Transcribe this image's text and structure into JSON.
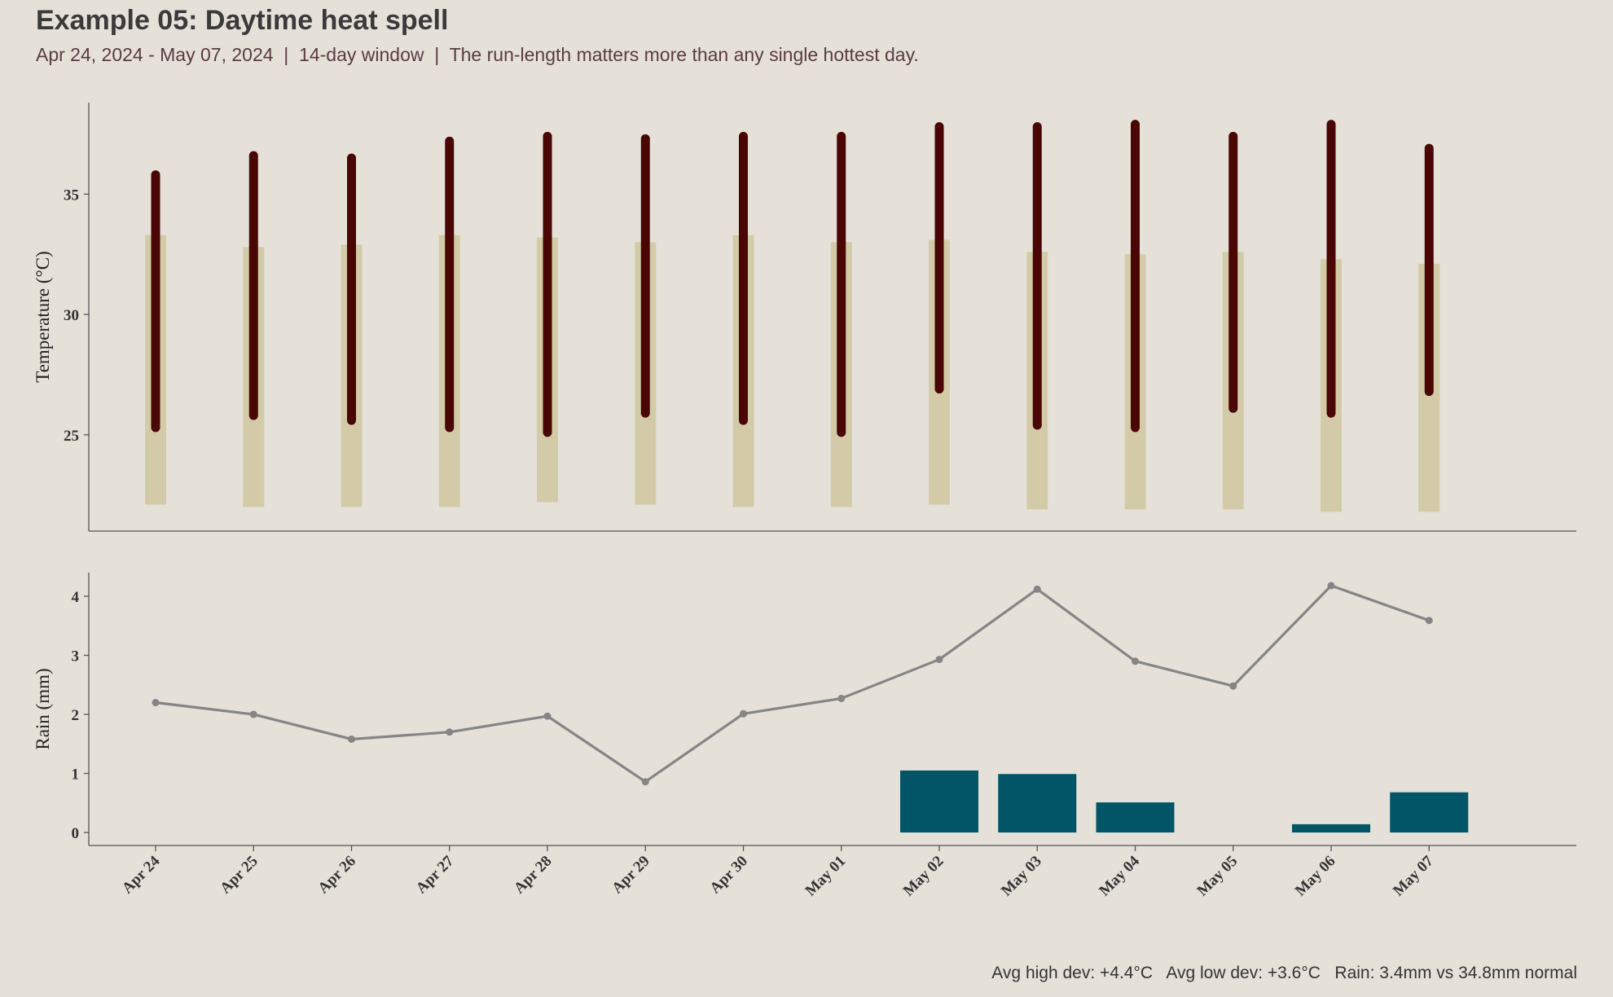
{
  "header": {
    "title": "Example 05: Daytime heat spell",
    "subtitle": "Apr 24, 2024 - May 07, 2024  |  14-day window  |  The run-length matters more than any single hottest day."
  },
  "footer": {
    "summary": "Avg high dev: +4.4°C   Avg low dev: +3.6°C   Rain: 3.4mm vs 34.8mm normal"
  },
  "colors": {
    "background": "#e5e1d9",
    "observed_range": "#4a0505",
    "normal_range": "#d3cba8",
    "rain_bar": "#025566",
    "rain_normal_line": "#858585",
    "axis": "#555555"
  },
  "chart_data": [
    {
      "type": "bar",
      "subtype": "range",
      "ylabel": "Temperature (°C)",
      "ylim": [
        21,
        38.8
      ],
      "yticks": [
        25,
        30,
        35
      ],
      "grid": false,
      "categories": [
        "Apr 24",
        "Apr 25",
        "Apr 26",
        "Apr 27",
        "Apr 28",
        "Apr 29",
        "Apr 30",
        "May 01",
        "May 02",
        "May 03",
        "May 04",
        "May 05",
        "May 06",
        "May 07"
      ],
      "series": [
        {
          "role": "normal",
          "low": [
            22.1,
            22.0,
            22.0,
            22.0,
            22.2,
            22.1,
            22.0,
            22.0,
            22.1,
            21.9,
            21.9,
            21.9,
            21.8,
            21.8
          ],
          "high": [
            33.3,
            32.8,
            32.9,
            33.3,
            33.2,
            33.0,
            33.3,
            33.0,
            33.1,
            32.6,
            32.5,
            32.6,
            32.3,
            32.1
          ]
        },
        {
          "role": "observed",
          "low": [
            25.3,
            25.8,
            25.6,
            25.3,
            25.1,
            25.9,
            25.6,
            25.1,
            26.9,
            25.4,
            25.3,
            26.1,
            25.9,
            26.8
          ],
          "high": [
            35.8,
            36.6,
            36.5,
            37.2,
            37.4,
            37.3,
            37.4,
            37.4,
            37.8,
            37.8,
            37.9,
            37.4,
            37.9,
            36.9
          ]
        }
      ]
    },
    {
      "type": "bar",
      "ylabel": "Rain (mm)",
      "ylim": [
        -0.22,
        4.4
      ],
      "yticks": [
        0,
        1,
        2,
        3,
        4
      ],
      "grid": false,
      "categories": [
        "Apr 24",
        "Apr 25",
        "Apr 26",
        "Apr 27",
        "Apr 28",
        "Apr 29",
        "Apr 30",
        "May 01",
        "May 02",
        "May 03",
        "May 04",
        "May 05",
        "May 06",
        "May 07"
      ],
      "series": [
        {
          "role": "observed",
          "values": [
            0,
            0,
            0,
            0,
            0,
            0,
            0,
            0,
            1.05,
            0.99,
            0.51,
            0,
            0.14,
            0.68
          ]
        },
        {
          "role": "normal",
          "type": "line",
          "values": [
            2.2,
            2.0,
            1.58,
            1.7,
            1.97,
            0.86,
            2.01,
            2.27,
            2.93,
            4.12,
            2.9,
            2.48,
            4.18,
            3.59
          ]
        }
      ]
    }
  ]
}
